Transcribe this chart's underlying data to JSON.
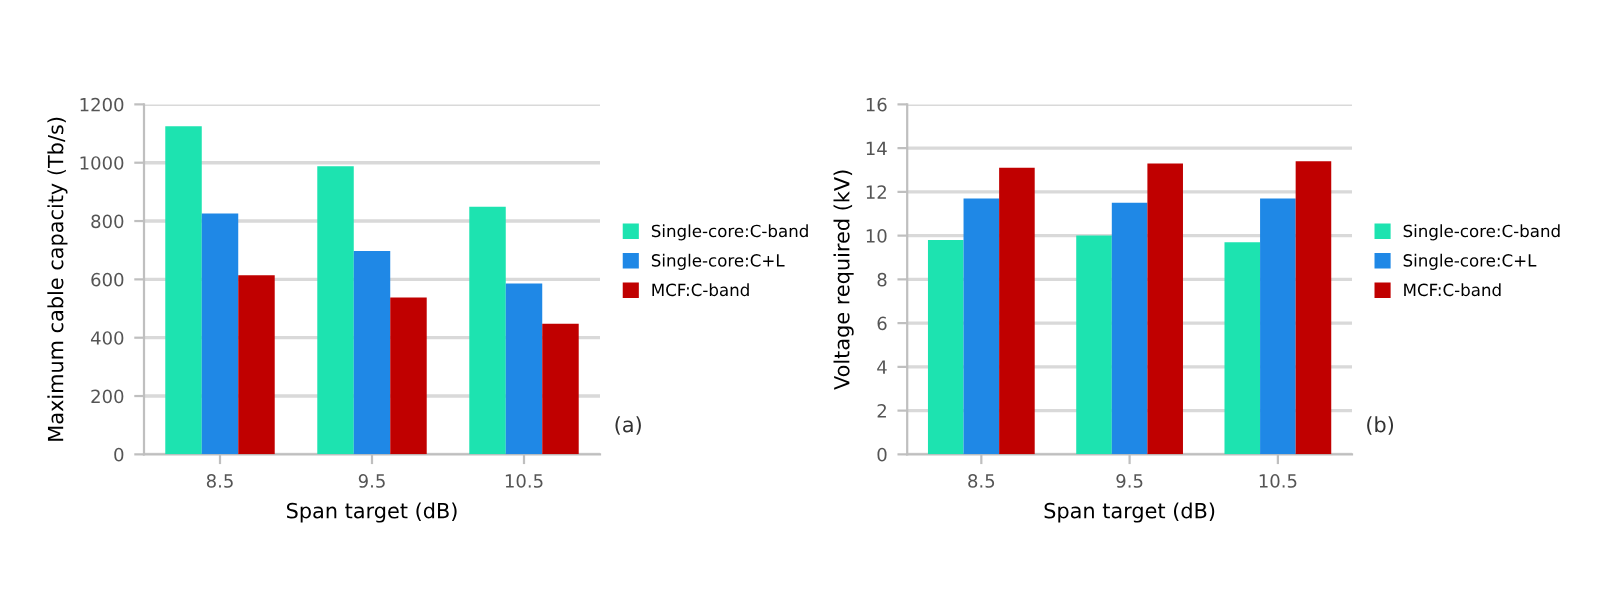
{
  "chart_data": [
    {
      "type": "bar",
      "xlabel": "Span target (dB)",
      "ylabel": "Maximum cable capacity (Tb/s)",
      "categories": [
        "8.5",
        "9.5",
        "10.5"
      ],
      "series": [
        {
          "name": "Single-core:C-band",
          "color": "#1de3b0",
          "values": [
            1125,
            988,
            849
          ]
        },
        {
          "name": "Single-core:C+L",
          "color": "#1f88e6",
          "values": [
            826,
            697,
            586
          ]
        },
        {
          "name": "MCF:C-band",
          "color": "#c00000",
          "values": [
            614,
            538,
            448
          ]
        }
      ],
      "ylim": [
        0,
        1200
      ],
      "yticks": [
        0,
        200,
        400,
        600,
        800,
        1000,
        1200
      ],
      "grid": "y",
      "legend": "right",
      "annotations": [
        "(a)"
      ]
    },
    {
      "type": "bar",
      "xlabel": "Span target (dB)",
      "ylabel": "Voltage required (kV)",
      "categories": [
        "8.5",
        "9.5",
        "10.5"
      ],
      "series": [
        {
          "name": "Single-core:C-band",
          "color": "#1de3b0",
          "values": [
            9.8,
            10.0,
            9.7
          ]
        },
        {
          "name": "Single-core:C+L",
          "color": "#1f88e6",
          "values": [
            11.7,
            11.5,
            11.7
          ]
        },
        {
          "name": "MCF:C-band",
          "color": "#c00000",
          "values": [
            13.1,
            13.3,
            13.4
          ]
        }
      ],
      "ylim": [
        0,
        16
      ],
      "yticks": [
        0,
        2,
        4,
        6,
        8,
        10,
        12,
        14,
        16
      ],
      "grid": "y",
      "legend": "right",
      "annotations": [
        "(b)"
      ]
    }
  ]
}
